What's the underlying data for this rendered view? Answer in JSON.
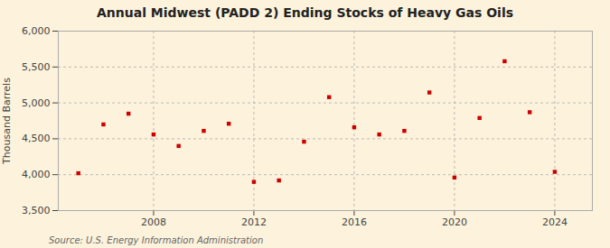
{
  "chart_data": {
    "type": "scatter",
    "title": "Annual Midwest (PADD 2) Ending Stocks of Heavy Gas Oils",
    "ylabel": "Thousand Barrels",
    "source": "Source: U.S. Energy Information Administration",
    "x": [
      2005,
      2006,
      2007,
      2008,
      2009,
      2010,
      2011,
      2012,
      2013,
      2014,
      2015,
      2016,
      2017,
      2018,
      2019,
      2020,
      2021,
      2022,
      2023,
      2024
    ],
    "values": [
      4020,
      4700,
      4850,
      4560,
      4400,
      4610,
      4710,
      3900,
      3920,
      4460,
      5080,
      4660,
      4560,
      4610,
      5145,
      3960,
      4790,
      5580,
      4870,
      4040
    ],
    "color": "#cc0000",
    "marker": "square",
    "xlim": [
      2004.2,
      2025.5
    ],
    "xticks": [
      2008,
      2012,
      2016,
      2020,
      2024
    ],
    "ylim": [
      3500,
      6000
    ],
    "yticks": [
      {
        "value": 3500,
        "label": "3,500"
      },
      {
        "value": 4000,
        "label": "4,000"
      },
      {
        "value": 4500,
        "label": "4,500"
      },
      {
        "value": 5000,
        "label": "5,000"
      },
      {
        "value": 5500,
        "label": "5,500"
      },
      {
        "value": 6000,
        "label": "6,000"
      }
    ],
    "grid": true
  }
}
